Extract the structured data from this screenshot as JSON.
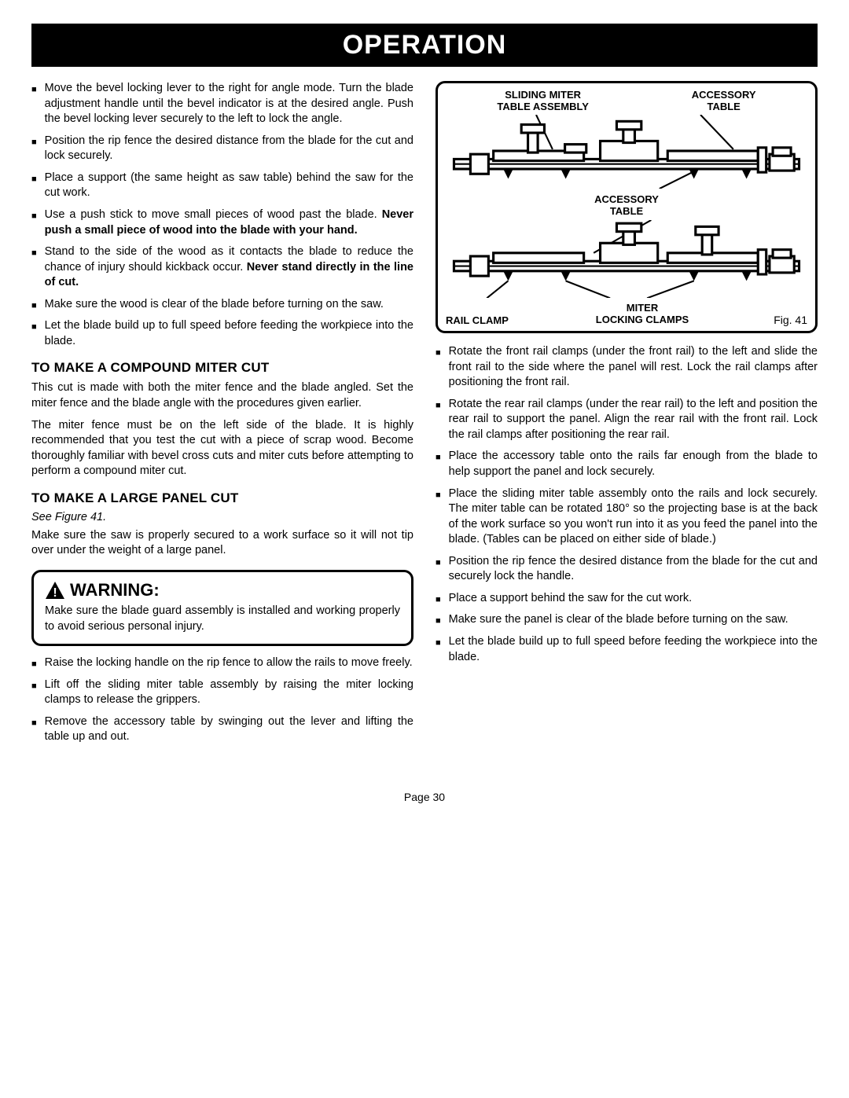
{
  "title": "OPERATION",
  "left_bullets_1": [
    {
      "text": "Move the bevel locking lever to the right for angle mode. Turn the blade adjustment handle until the bevel indicator is at the desired angle. Push the bevel locking lever securely to the left to lock the angle."
    },
    {
      "text": "Position the rip fence the desired distance from the blade for the cut and lock securely."
    },
    {
      "text": "Place a support (the same height as saw table) behind the saw for the cut work."
    },
    {
      "text": "Use a push stick to move small pieces of wood  past the blade. ",
      "bold_tail": "Never push a small piece of wood into the blade with your hand."
    },
    {
      "text": "Stand to the side of the wood as it contacts the blade to reduce the chance of injury should kickback occur. ",
      "bold_tail": "Never stand directly in the line of cut."
    },
    {
      "text": "Make sure the wood is clear of the blade before turning on the saw."
    },
    {
      "text": "Let the blade build up to full speed before feeding the workpiece into the blade."
    }
  ],
  "compound_head": "TO MAKE A COMPOUND MITER CUT",
  "compound_p1": "This cut is made with both the miter fence and the blade angled. Set the miter fence and the blade angle with the procedures given earlier.",
  "compound_p2": "The miter fence must be on the left side of the blade. It is highly recommended that you test the cut with a piece of scrap wood. Become thoroughly familiar with bevel cross cuts and miter cuts before attempting to perform a compound miter cut.",
  "panel_head": "TO MAKE A LARGE PANEL CUT",
  "see_figure": "See Figure 41.",
  "panel_p1": "Make sure the saw is properly secured to a work surface so it will not tip over under the weight of a large panel.",
  "warning_title": "WARNING:",
  "warning_body": "Make sure the blade guard assembly is installed and working properly to avoid serious personal injury.",
  "left_bullets_2": [
    {
      "text": "Raise the locking handle on the rip fence to allow the rails to move freely."
    },
    {
      "text": "Lift off the sliding miter table assembly by raising the miter locking clamps to release the grippers."
    },
    {
      "text": "Remove the accessory table by swinging out the lever and lifting the table up and out."
    }
  ],
  "figure": {
    "label_sliding_l1": "SLIDING MITER",
    "label_sliding_l2": "TABLE ASSEMBLY",
    "label_accessory_l1": "ACCESSORY",
    "label_accessory_l2": "TABLE",
    "label_center_l1": "ACCESSORY",
    "label_center_l2": "TABLE",
    "label_rail": "RAIL CLAMP",
    "label_miter_l1": "MITER",
    "label_miter_l2": "LOCKING CLAMPS",
    "fig_num": "Fig. 41"
  },
  "right_bullets": [
    {
      "text": "Rotate the front rail clamps (under the front rail) to the left and slide the front rail to the side where the panel will rest. Lock the rail clamps after positioning the front rail."
    },
    {
      "text": "Rotate the rear rail clamps (under the rear rail) to the left and position the rear rail to support the panel. Align the rear rail with the front rail. Lock the rail clamps after positioning the rear rail."
    },
    {
      "text": "Place the accessory table onto the rails far enough from the blade to help support the panel and lock securely."
    },
    {
      "text": "Place the sliding miter table assembly onto the rails and lock securely. The miter table can be rotated 180° so the projecting base  is at the back of the work surface so you won't run into it as you feed the panel into the blade. (Tables can be placed on either side of blade.)"
    },
    {
      "text": "Position the rip fence the desired distance from the blade for the cut and securely lock the handle."
    },
    {
      "text": "Place a support behind the saw for the cut work."
    },
    {
      "text": "Make sure the panel is clear of the blade before turning on the saw."
    },
    {
      "text": "Let the blade build up to full speed before feeding the workpiece into the blade."
    }
  ],
  "page_number": "Page 30"
}
